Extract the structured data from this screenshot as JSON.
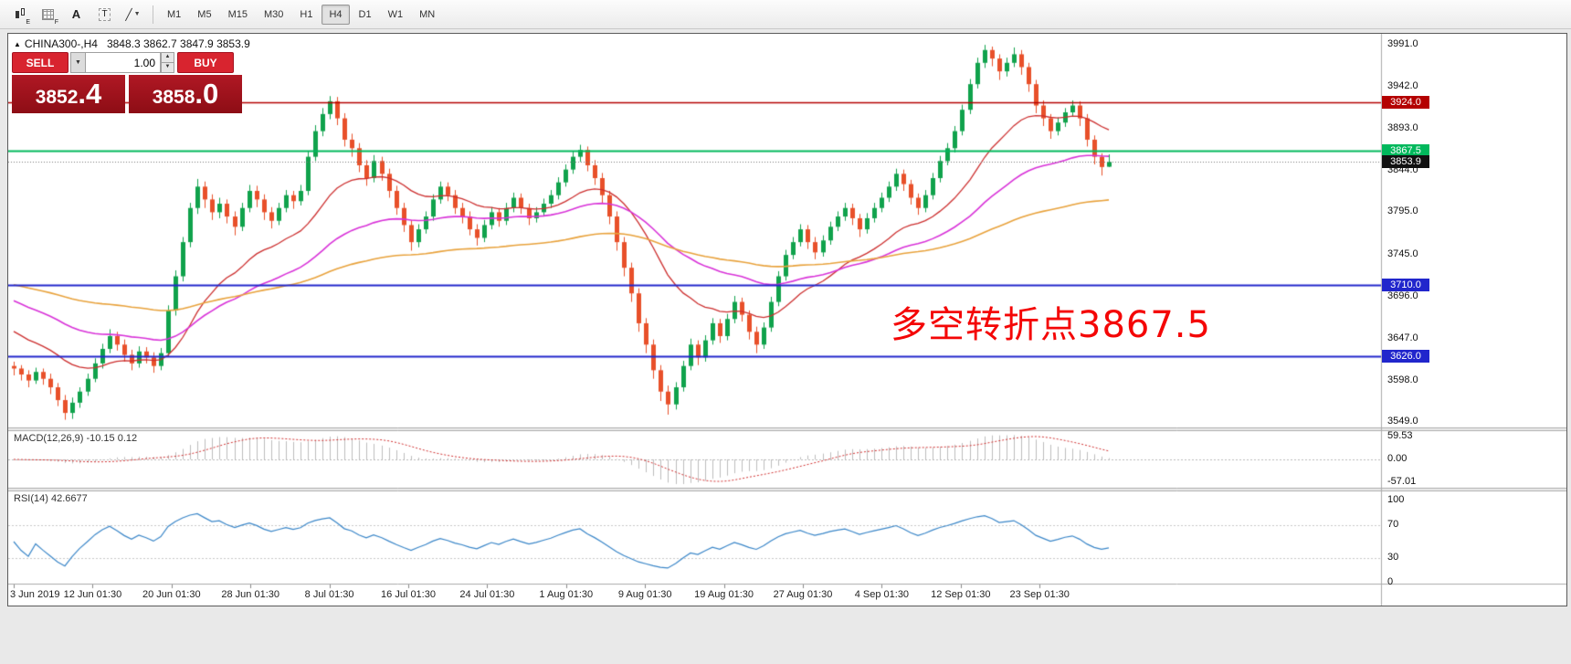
{
  "icons": {
    "collapse": "▲",
    "caret_down": "▼",
    "spin_up": "▲",
    "spin_down": "▼"
  },
  "toolbar": {
    "tools": [
      {
        "name": "candlestick-tool",
        "sub": "E"
      },
      {
        "name": "pattern-grid-tool",
        "sub": "F"
      },
      {
        "name": "text-tool",
        "glyph": "A"
      },
      {
        "name": "text-label-tool",
        "glyph": "T"
      },
      {
        "name": "crosshair-tool",
        "glyph": "╱"
      }
    ],
    "timeframes": [
      "M1",
      "M5",
      "M15",
      "M30",
      "H1",
      "H4",
      "D1",
      "W1",
      "MN"
    ],
    "active_timeframe": "H4"
  },
  "window": {
    "title": "CHINA300-,H4",
    "ohlc": "3848.3 3862.7 3847.9 3853.9"
  },
  "trade_panel": {
    "sell_label": "SELL",
    "buy_label": "BUY",
    "volume": "1.00",
    "sell_price_main": "3852",
    "sell_price_frac": ".4",
    "buy_price_main": "3858",
    "buy_price_frac": ".0"
  },
  "annotation": {
    "text": "多空转折点3867.5",
    "color": "#f40606"
  },
  "indicators": {
    "macd_label": "MACD(12,26,9) -10.15 0.12",
    "rsi_label": "RSI(14) 42.6677"
  },
  "chart_data": {
    "type": "candlestick",
    "symbol": "CHINA300-",
    "timeframe": "H4",
    "ohlc_display": {
      "open": 3848.3,
      "high": 3862.7,
      "low": 3847.9,
      "close": 3853.9
    },
    "y_ticks": [
      3991.0,
      3942.0,
      3893.0,
      3844.0,
      3795.0,
      3745.0,
      3696.0,
      3647.0,
      3598.0,
      3549.0
    ],
    "time_labels": [
      "3 Jun 2019",
      "12 Jun 01:30",
      "20 Jun 01:30",
      "28 Jun 01:30",
      "8 Jul 01:30",
      "16 Jul 01:30",
      "24 Jul 01:30",
      "1 Aug 01:30",
      "9 Aug 01:30",
      "19 Aug 01:30",
      "27 Aug 01:30",
      "4 Sep 01:30",
      "12 Sep 01:30",
      "23 Sep 01:30"
    ],
    "candle_colors": {
      "up": "#10a24c",
      "down": "#e8502a"
    },
    "moving_averages": [
      {
        "name": "ma-fast",
        "period": 20,
        "color": "#cc2e2e",
        "width": 1.3
      },
      {
        "name": "ma-medium",
        "period": 45,
        "color": "#d832d8",
        "width": 1.6
      },
      {
        "name": "ma-slow",
        "period": 110,
        "color": "#e8a23c",
        "width": 1.6
      }
    ],
    "hlines": [
      {
        "price": 3924.0,
        "color": "#b40000",
        "width": 1.5
      },
      {
        "price": 3867.5,
        "color": "#00b85c",
        "width": 2
      },
      {
        "price": 3710.0,
        "color": "#2126cc",
        "width": 2
      },
      {
        "price": 3626.0,
        "color": "#2126cc",
        "width": 2
      }
    ],
    "current_price": {
      "value": 3853.9,
      "tag_bg": "#111111"
    },
    "price_tags": [
      {
        "label": "3924.0",
        "price": 3924.0,
        "bg": "#b40000"
      },
      {
        "label": "3867.5",
        "price": 3867.5,
        "bg": "#00b85c"
      },
      {
        "label": "3853.9",
        "price": 3853.9,
        "bg": "#111111"
      },
      {
        "label": "3710.0",
        "price": 3710.0,
        "bg": "#2126cc"
      },
      {
        "label": "3626.0",
        "price": 3626.0,
        "bg": "#2126cc"
      }
    ],
    "macd": {
      "params": [
        12,
        26,
        9
      ],
      "current": [
        -10.15,
        0.12
      ],
      "y_ticks": [
        "59.53",
        "0.00",
        "-57.01"
      ],
      "bar_color": "#bcbcbc",
      "signal_color": "#d03030"
    },
    "rsi": {
      "period": 14,
      "current": 42.6677,
      "y_ticks": [
        "100",
        "70",
        "30",
        "0"
      ],
      "levels": [
        70,
        30
      ],
      "line_color": "#3a86c8"
    },
    "candles": [
      [
        3615,
        3620,
        3604,
        3612
      ],
      [
        3612,
        3616,
        3598,
        3605
      ],
      [
        3605,
        3610,
        3590,
        3598
      ],
      [
        3598,
        3613,
        3594,
        3608
      ],
      [
        3608,
        3612,
        3593,
        3600
      ],
      [
        3600,
        3606,
        3582,
        3590
      ],
      [
        3590,
        3595,
        3568,
        3575
      ],
      [
        3575,
        3581,
        3552,
        3560
      ],
      [
        3560,
        3578,
        3553,
        3572
      ],
      [
        3572,
        3590,
        3566,
        3585
      ],
      [
        3585,
        3606,
        3580,
        3600
      ],
      [
        3600,
        3624,
        3596,
        3618
      ],
      [
        3618,
        3641,
        3612,
        3635
      ],
      [
        3635,
        3658,
        3630,
        3650
      ],
      [
        3650,
        3655,
        3633,
        3640
      ],
      [
        3640,
        3646,
        3620,
        3628
      ],
      [
        3628,
        3634,
        3610,
        3618
      ],
      [
        3618,
        3638,
        3613,
        3632
      ],
      [
        3632,
        3637,
        3618,
        3625
      ],
      [
        3625,
        3631,
        3607,
        3615
      ],
      [
        3615,
        3636,
        3610,
        3630
      ],
      [
        3630,
        3686,
        3626,
        3680
      ],
      [
        3680,
        3727,
        3674,
        3720
      ],
      [
        3720,
        3766,
        3714,
        3760
      ],
      [
        3760,
        3806,
        3754,
        3800
      ],
      [
        3800,
        3834,
        3793,
        3825
      ],
      [
        3825,
        3831,
        3800,
        3810
      ],
      [
        3810,
        3816,
        3786,
        3795
      ],
      [
        3795,
        3812,
        3788,
        3805
      ],
      [
        3805,
        3810,
        3782,
        3790
      ],
      [
        3790,
        3796,
        3768,
        3778
      ],
      [
        3778,
        3806,
        3773,
        3800
      ],
      [
        3800,
        3827,
        3795,
        3820
      ],
      [
        3820,
        3826,
        3801,
        3810
      ],
      [
        3810,
        3816,
        3786,
        3795
      ],
      [
        3795,
        3801,
        3776,
        3785
      ],
      [
        3785,
        3806,
        3780,
        3800
      ],
      [
        3800,
        3821,
        3795,
        3815
      ],
      [
        3815,
        3820,
        3799,
        3808
      ],
      [
        3808,
        3827,
        3803,
        3820
      ],
      [
        3820,
        3866,
        3815,
        3860
      ],
      [
        3860,
        3897,
        3855,
        3890
      ],
      [
        3890,
        3917,
        3884,
        3910
      ],
      [
        3910,
        3931,
        3904,
        3925
      ],
      [
        3925,
        3930,
        3897,
        3905
      ],
      [
        3905,
        3911,
        3872,
        3880
      ],
      [
        3880,
        3887,
        3860,
        3870
      ],
      [
        3870,
        3876,
        3842,
        3850
      ],
      [
        3850,
        3856,
        3826,
        3835
      ],
      [
        3835,
        3862,
        3830,
        3855
      ],
      [
        3855,
        3860,
        3832,
        3840
      ],
      [
        3840,
        3846,
        3812,
        3820
      ],
      [
        3820,
        3826,
        3792,
        3800
      ],
      [
        3800,
        3806,
        3772,
        3780
      ],
      [
        3780,
        3786,
        3750,
        3760
      ],
      [
        3760,
        3781,
        3754,
        3775
      ],
      [
        3775,
        3796,
        3770,
        3790
      ],
      [
        3790,
        3816,
        3785,
        3810
      ],
      [
        3810,
        3831,
        3805,
        3825
      ],
      [
        3825,
        3830,
        3808,
        3815
      ],
      [
        3815,
        3821,
        3793,
        3800
      ],
      [
        3800,
        3806,
        3782,
        3790
      ],
      [
        3790,
        3796,
        3768,
        3775
      ],
      [
        3775,
        3781,
        3756,
        3765
      ],
      [
        3765,
        3786,
        3760,
        3780
      ],
      [
        3780,
        3801,
        3775,
        3795
      ],
      [
        3795,
        3800,
        3778,
        3785
      ],
      [
        3785,
        3806,
        3780,
        3800
      ],
      [
        3800,
        3818,
        3795,
        3812
      ],
      [
        3812,
        3817,
        3793,
        3800
      ],
      [
        3800,
        3805,
        3780,
        3788
      ],
      [
        3788,
        3801,
        3783,
        3795
      ],
      [
        3795,
        3811,
        3790,
        3805
      ],
      [
        3805,
        3821,
        3800,
        3815
      ],
      [
        3815,
        3836,
        3810,
        3830
      ],
      [
        3830,
        3851,
        3825,
        3845
      ],
      [
        3845,
        3866,
        3840,
        3860
      ],
      [
        3860,
        3874,
        3854,
        3868
      ],
      [
        3868,
        3872,
        3843,
        3850
      ],
      [
        3850,
        3856,
        3827,
        3835
      ],
      [
        3835,
        3841,
        3806,
        3815
      ],
      [
        3815,
        3820,
        3781,
        3790
      ],
      [
        3790,
        3796,
        3750,
        3760
      ],
      [
        3760,
        3766,
        3720,
        3730
      ],
      [
        3730,
        3736,
        3690,
        3700
      ],
      [
        3700,
        3706,
        3655,
        3665
      ],
      [
        3665,
        3671,
        3630,
        3640
      ],
      [
        3640,
        3646,
        3600,
        3610
      ],
      [
        3610,
        3616,
        3574,
        3585
      ],
      [
        3585,
        3592,
        3558,
        3570
      ],
      [
        3570,
        3596,
        3564,
        3590
      ],
      [
        3590,
        3621,
        3585,
        3615
      ],
      [
        3615,
        3647,
        3610,
        3640
      ],
      [
        3640,
        3645,
        3616,
        3625
      ],
      [
        3625,
        3651,
        3620,
        3645
      ],
      [
        3645,
        3671,
        3640,
        3665
      ],
      [
        3665,
        3670,
        3642,
        3650
      ],
      [
        3650,
        3676,
        3645,
        3670
      ],
      [
        3670,
        3697,
        3665,
        3690
      ],
      [
        3690,
        3695,
        3667,
        3675
      ],
      [
        3675,
        3680,
        3646,
        3655
      ],
      [
        3655,
        3661,
        3630,
        3640
      ],
      [
        3640,
        3666,
        3635,
        3660
      ],
      [
        3660,
        3696,
        3655,
        3690
      ],
      [
        3690,
        3726,
        3685,
        3720
      ],
      [
        3720,
        3751,
        3715,
        3745
      ],
      [
        3745,
        3766,
        3740,
        3760
      ],
      [
        3760,
        3781,
        3755,
        3775
      ],
      [
        3775,
        3780,
        3752,
        3760
      ],
      [
        3760,
        3766,
        3740,
        3748
      ],
      [
        3748,
        3768,
        3743,
        3762
      ],
      [
        3762,
        3784,
        3757,
        3778
      ],
      [
        3778,
        3796,
        3773,
        3790
      ],
      [
        3790,
        3806,
        3785,
        3800
      ],
      [
        3800,
        3805,
        3780,
        3788
      ],
      [
        3788,
        3793,
        3766,
        3775
      ],
      [
        3775,
        3794,
        3770,
        3788
      ],
      [
        3788,
        3806,
        3783,
        3800
      ],
      [
        3800,
        3818,
        3795,
        3812
      ],
      [
        3812,
        3831,
        3807,
        3825
      ],
      [
        3825,
        3846,
        3820,
        3840
      ],
      [
        3840,
        3845,
        3820,
        3828
      ],
      [
        3828,
        3833,
        3804,
        3812
      ],
      [
        3812,
        3817,
        3792,
        3800
      ],
      [
        3800,
        3821,
        3795,
        3815
      ],
      [
        3815,
        3841,
        3810,
        3835
      ],
      [
        3835,
        3861,
        3830,
        3855
      ],
      [
        3855,
        3876,
        3850,
        3870
      ],
      [
        3870,
        3896,
        3865,
        3890
      ],
      [
        3890,
        3921,
        3885,
        3915
      ],
      [
        3915,
        3951,
        3910,
        3945
      ],
      [
        3945,
        3976,
        3940,
        3970
      ],
      [
        3970,
        3991,
        3964,
        3985
      ],
      [
        3985,
        3989,
        3966,
        3975
      ],
      [
        3975,
        3980,
        3950,
        3960
      ],
      [
        3960,
        3976,
        3954,
        3970
      ],
      [
        3970,
        3988,
        3965,
        3980
      ],
      [
        3980,
        3985,
        3956,
        3965
      ],
      [
        3965,
        3970,
        3936,
        3945
      ],
      [
        3945,
        3950,
        3911,
        3920
      ],
      [
        3920,
        3926,
        3896,
        3905
      ],
      [
        3905,
        3910,
        3881,
        3890
      ],
      [
        3890,
        3906,
        3885,
        3900
      ],
      [
        3900,
        3917,
        3895,
        3912
      ],
      [
        3912,
        3926,
        3907,
        3920
      ],
      [
        3920,
        3925,
        3896,
        3905
      ],
      [
        3905,
        3910,
        3872,
        3880
      ],
      [
        3880,
        3885,
        3851,
        3860
      ],
      [
        3860,
        3864,
        3838,
        3848
      ],
      [
        3848.3,
        3862.7,
        3847.9,
        3853.9
      ]
    ]
  }
}
